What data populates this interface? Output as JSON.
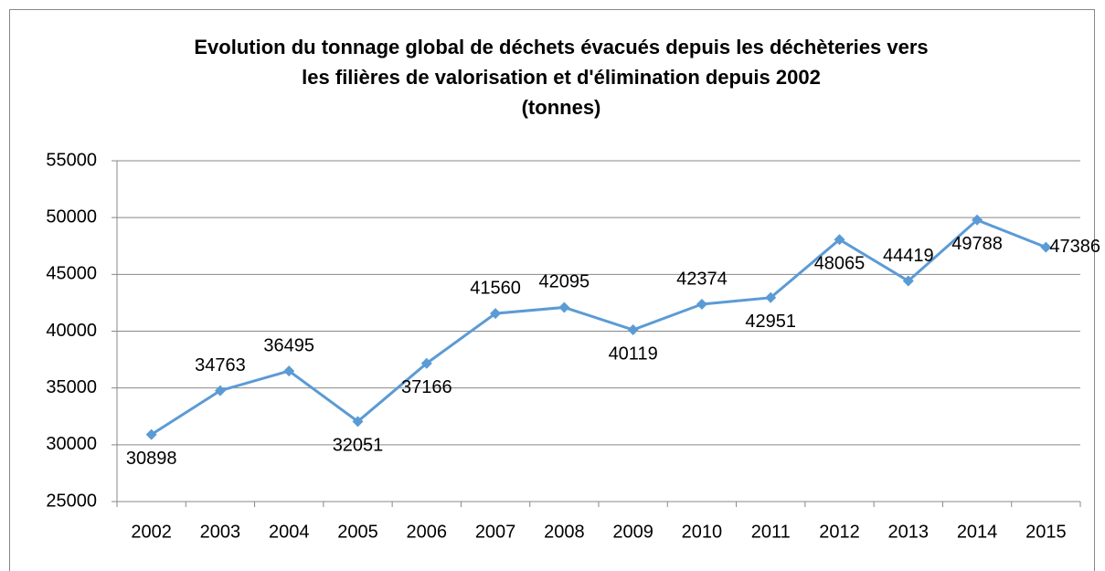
{
  "chart_data": {
    "type": "line",
    "title": [
      "Evolution du tonnage global de déchets évacués depuis les déchèteries vers",
      "les filières de valorisation et d'élimination depuis 2002",
      "(tonnes)"
    ],
    "categories": [
      "2002",
      "2003",
      "2004",
      "2005",
      "2006",
      "2007",
      "2008",
      "2009",
      "2010",
      "2011",
      "2012",
      "2013",
      "2014",
      "2015"
    ],
    "series": [
      {
        "name": "Tonnage",
        "color": "#5b9bd5",
        "values": [
          30898,
          34763,
          36495,
          32051,
          37166,
          41560,
          42095,
          40119,
          42374,
          42951,
          48065,
          44419,
          49788,
          47386
        ]
      }
    ],
    "ylim": [
      25000,
      55000
    ],
    "yticks": [
      25000,
      30000,
      35000,
      40000,
      45000,
      50000,
      55000
    ],
    "grid": true
  }
}
